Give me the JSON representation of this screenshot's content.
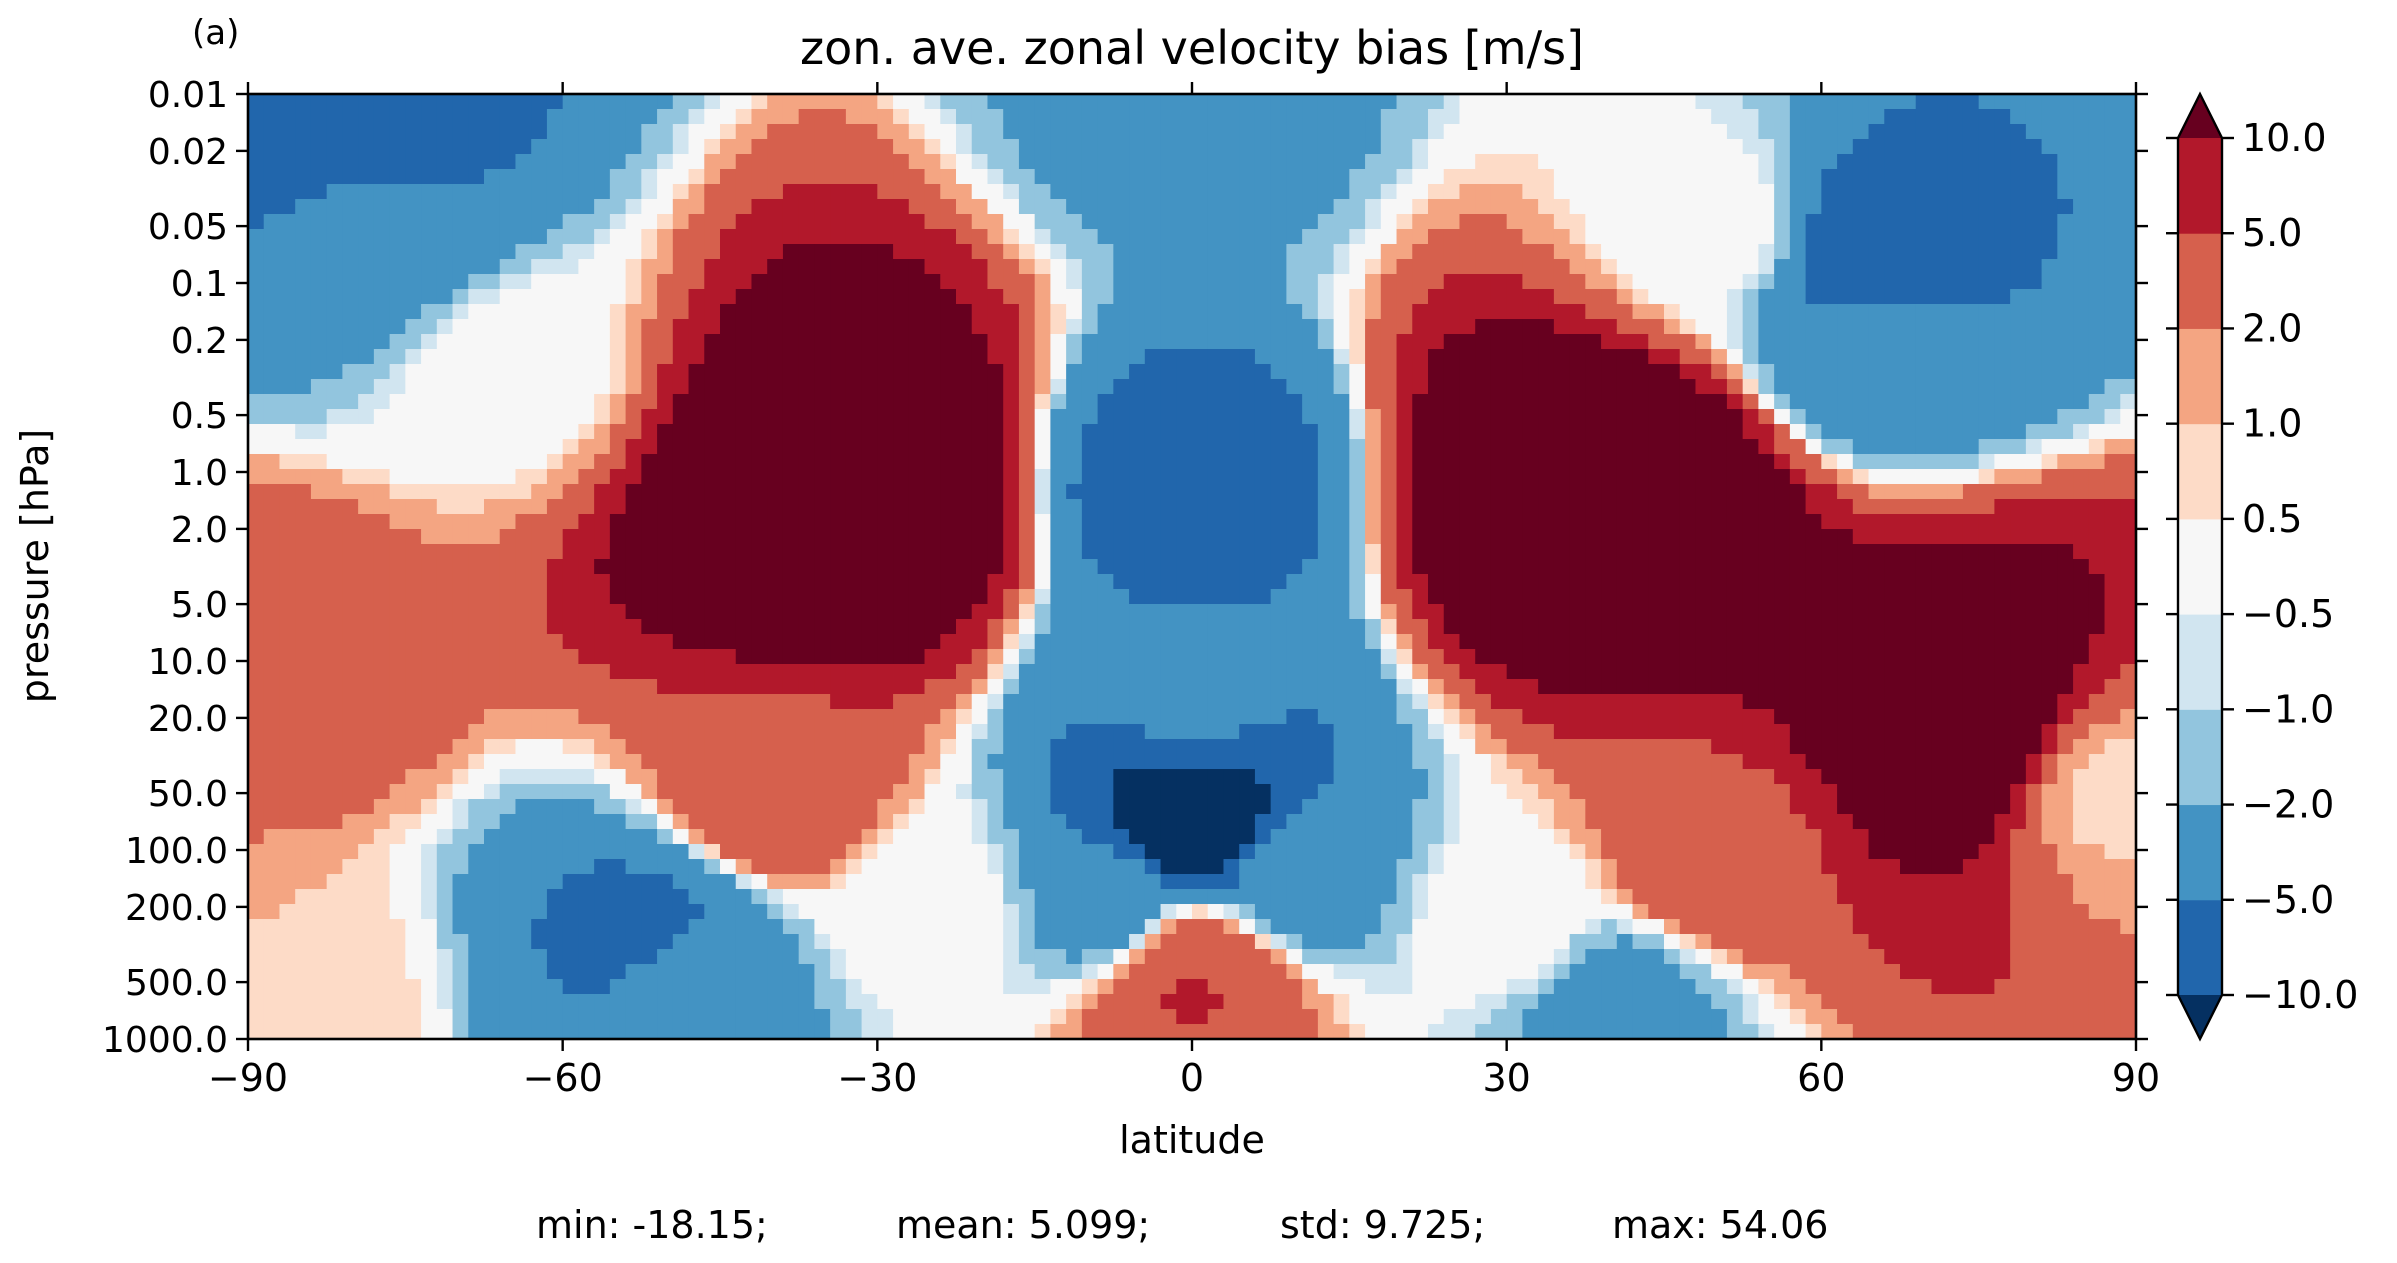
{
  "chart_data": {
    "type": "heatmap",
    "panel_label": "(a)",
    "title": "zon. ave. zonal velocity bias [m/s]",
    "xlabel": "latitude",
    "ylabel": "pressure [hPa]",
    "xlim": [
      -90,
      90
    ],
    "ylim": [
      1000,
      0.01
    ],
    "yscale": "log",
    "x_ticks": [
      -90,
      -60,
      -30,
      0,
      30,
      60,
      90
    ],
    "x_tick_labels": [
      "−90",
      "−60",
      "−30",
      "0",
      "30",
      "60",
      "90"
    ],
    "y_ticks": [
      0.01,
      0.02,
      0.05,
      0.1,
      0.2,
      0.5,
      1,
      2,
      5,
      10,
      20,
      50,
      100,
      200,
      500,
      1000
    ],
    "y_tick_labels": [
      "0.01",
      "0.02",
      "0.05",
      "0.1",
      "0.2",
      "0.5",
      "1.0",
      "2.0",
      "5.0",
      "10.0",
      "20.0",
      "50.0",
      "100.0",
      "200.0",
      "500.0",
      "1000.0"
    ],
    "colorbar": {
      "levels": [
        -10,
        -5,
        -2,
        -1,
        -0.5,
        0.5,
        1,
        2,
        5,
        10
      ],
      "labels": [
        "−10.0",
        "−5.0",
        "−2.0",
        "−1.0",
        "−0.5",
        "0.5",
        "1.0",
        "2.0",
        "5.0",
        "10.0"
      ],
      "colors": [
        "#2166ac",
        "#4393c3",
        "#92c5de",
        "#d1e5f0",
        "#f7f7f7",
        "#fddbc7",
        "#f4a582",
        "#d6604d",
        "#b2182b"
      ],
      "under_color": "#053061",
      "over_color": "#67001f",
      "missing_color": "#c8c8c8",
      "extend": "both"
    },
    "features": [
      {
        "lat": 0,
        "p": 0.01,
        "value": -3
      },
      {
        "lat": -80,
        "p": 0.015,
        "value": -8
      },
      {
        "lat": -78,
        "p": 0.05,
        "value": -4
      },
      {
        "lat": 65,
        "p": 0.07,
        "value": -7
      },
      {
        "lat": 65,
        "p": 0.2,
        "value": -4
      },
      {
        "lat": -35,
        "p": 1.5,
        "value": 30
      },
      {
        "lat": 40,
        "p": 1.5,
        "value": 30
      },
      {
        "lat": 72,
        "p": 20,
        "value": 20
      },
      {
        "lat": 0,
        "p": 1.3,
        "value": -7
      },
      {
        "lat": 0,
        "p": 15,
        "value": -4
      },
      {
        "lat": 0,
        "p": 70,
        "value": -14
      },
      {
        "lat": -8,
        "p": 200,
        "value": -3
      },
      {
        "lat": 10,
        "p": 150,
        "value": -3
      },
      {
        "lat": -50,
        "p": 400,
        "value": -4
      },
      {
        "lat": -52,
        "p": 300,
        "value": -6
      },
      {
        "lat": 40,
        "p": 700,
        "value": -3
      },
      {
        "lat": 0,
        "p": 450,
        "value": 3
      },
      {
        "lat": 0,
        "p": 500,
        "value": 6
      },
      {
        "lat": -40,
        "p": 50,
        "value": 4
      },
      {
        "lat": 50,
        "p": 100,
        "value": 4
      },
      {
        "lat": -88,
        "p": 10,
        "value": 4
      },
      {
        "lat": -85,
        "p": 600,
        "value": 1
      },
      {
        "lat": 88,
        "p": 50,
        "value": 0.8
      },
      {
        "lat": -25,
        "p": 200,
        "value": 0
      },
      {
        "lat": 30,
        "p": 250,
        "value": 0
      },
      {
        "lat": -65,
        "p": 0.3,
        "value": 0
      },
      {
        "lat": 50,
        "p": 0.05,
        "value": 0
      }
    ]
  },
  "stats": {
    "min": "min: -18.15;",
    "mean": "mean: 5.099;",
    "std": "std: 9.725;",
    "max": "max: 54.06"
  }
}
